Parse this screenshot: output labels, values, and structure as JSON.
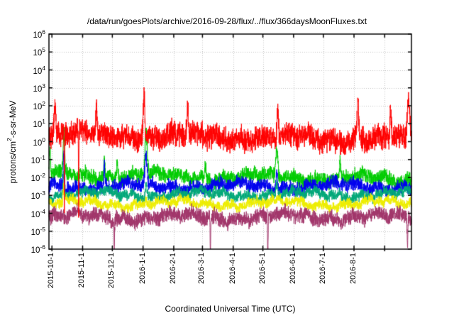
{
  "chart_data": {
    "type": "line",
    "title": "/data/run/goesPlots/archive/2016-09-28/flux/../flux/366daysMoonFluxes.txt",
    "xlabel": "Coordinated Universal Time (UTC)",
    "ylabel_prefix": "protons/cm",
    "ylabel_sup": "2",
    "ylabel_suffix": "-s-sr-MeV",
    "y_scale": "log10",
    "ylim_exponents": [
      -6,
      6
    ],
    "y_tick_base": "10",
    "y_tick_exponents": [
      6,
      5,
      4,
      3,
      2,
      1,
      0,
      -1,
      -2,
      -3,
      -4,
      -5,
      -6
    ],
    "x_range": {
      "start": "2015-09-28",
      "end": "2016-09-28",
      "days": 366
    },
    "x_ticks": [
      "2015-10-1",
      "2015-11-1",
      "2015-12-1",
      "2016-1-1",
      "2016-2-1",
      "2016-3-1",
      "2016-4-1",
      "2016-5-1",
      "2016-6-1",
      "2016-7-1",
      "2016-8-1"
    ],
    "grid": {
      "style": "dotted",
      "color": "#c0c0c0"
    },
    "frame_color": "#000000",
    "background": "#ffffff",
    "series": [
      {
        "name": "green-flux",
        "color": "#00cc00",
        "baseline_log10": -1.85,
        "noise_half_decades": 0.5,
        "trend_log10": -0.25,
        "spikes": [
          {
            "day": 1,
            "peak_log10": -0.6,
            "width_days": 0.8
          },
          {
            "day": 15,
            "peak_log10": 0.2,
            "width_days": 1.0
          },
          {
            "day": 56,
            "peak_log10": -0.55,
            "width_days": 0.8
          },
          {
            "day": 69,
            "peak_log10": -0.8,
            "width_days": 0.7
          },
          {
            "day": 98,
            "peak_log10": 0.55,
            "width_days": 1.6
          },
          {
            "day": 158,
            "peak_log10": -0.9,
            "width_days": 0.8
          },
          {
            "day": 230,
            "peak_log10": -0.3,
            "width_days": 1.4
          },
          {
            "day": 294,
            "peak_log10": -1.1,
            "width_days": 0.8
          }
        ]
      },
      {
        "name": "blue-flux",
        "color": "#0000ee",
        "baseline_log10": -2.5,
        "noise_half_decades": 0.45,
        "trend_log10": 0,
        "spikes": [
          {
            "day": 15,
            "peak_log10": -0.6,
            "width_days": 0.9
          },
          {
            "day": 56,
            "peak_log10": -1.3,
            "width_days": 0.7
          },
          {
            "day": 98,
            "peak_log10": -1.0,
            "width_days": 1.4
          },
          {
            "day": 230,
            "peak_log10": -1.5,
            "width_days": 1.2
          }
        ]
      },
      {
        "name": "seagreen-flux",
        "color": "#00a878",
        "baseline_log10": -2.95,
        "noise_half_decades": 0.35,
        "trend_log10": 0,
        "spikes": [
          {
            "day": 15,
            "peak_log10": -1.8,
            "width_days": 0.8
          },
          {
            "day": 98,
            "peak_log10": -2.1,
            "width_days": 1.2
          },
          {
            "day": 230,
            "peak_log10": -2.3,
            "width_days": 1.0
          }
        ]
      },
      {
        "name": "yellow-flux",
        "color": "#eded00",
        "baseline_log10": -3.45,
        "noise_half_decades": 0.33,
        "trend_log10": 0,
        "spikes": [
          {
            "day": 15,
            "peak_log10": -2.6,
            "width_days": 0.7
          },
          {
            "day": 98,
            "peak_log10": -2.9,
            "width_days": 1.0
          }
        ]
      },
      {
        "name": "maroon-flux",
        "color": "#a1356a",
        "baseline_log10": -4.2,
        "noise_half_decades": 0.5,
        "trend_log10": 0,
        "spikes": [
          {
            "day": 66,
            "peak_log10": -5.85,
            "width_days": 0.4
          },
          {
            "day": 163,
            "peak_log10": -6.3,
            "width_days": 0.4
          },
          {
            "day": 221,
            "peak_log10": -6.3,
            "width_days": 0.4
          },
          {
            "day": 362,
            "peak_log10": -5.9,
            "width_days": 0.5
          }
        ]
      },
      {
        "name": "red-flux",
        "color": "#ff0000",
        "baseline_log10": 0.4,
        "noise_half_decades": 0.8,
        "trend_log10": -0.3,
        "spikes": [
          {
            "day": 6,
            "peak_log10": 2.1,
            "width_days": 1.0
          },
          {
            "day": 15.6,
            "peak_log10": -4.0,
            "width_days": 0.3
          },
          {
            "day": 30,
            "peak_log10": -4.3,
            "width_days": 0.3
          },
          {
            "day": 48,
            "peak_log10": 2.0,
            "width_days": 0.9
          },
          {
            "day": 96,
            "peak_log10": 2.75,
            "width_days": 1.2
          },
          {
            "day": 140,
            "peak_log10": 1.9,
            "width_days": 0.9
          },
          {
            "day": 231,
            "peak_log10": 1.9,
            "width_days": 1.0
          },
          {
            "day": 312,
            "peak_log10": 2.55,
            "width_days": 1.1
          },
          {
            "day": 345,
            "peak_log10": 2.2,
            "width_days": 1.0
          },
          {
            "day": 363,
            "peak_log10": 2.6,
            "width_days": 1.6
          }
        ]
      }
    ]
  }
}
